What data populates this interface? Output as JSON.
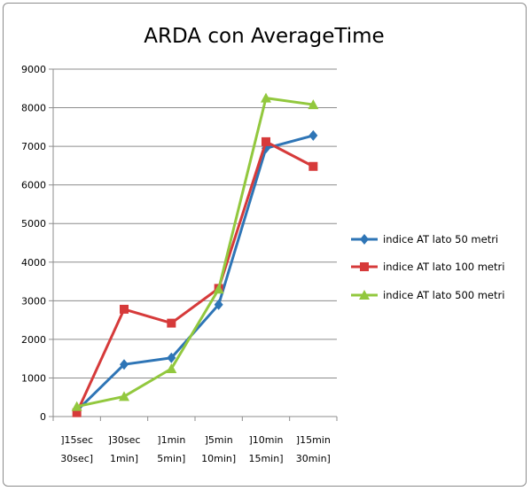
{
  "chart_data": {
    "type": "line",
    "title": "ARDA con AverageTime",
    "xlabel": "",
    "ylabel": "",
    "ylim": [
      0,
      9000
    ],
    "yticks": [
      0,
      1000,
      2000,
      3000,
      4000,
      5000,
      6000,
      7000,
      8000,
      9000
    ],
    "grid": "horizontal",
    "legend_position": "right",
    "categories": [
      [
        "]15sec",
        "30sec]"
      ],
      [
        "]30sec",
        "1min]"
      ],
      [
        "]1min",
        "5min]"
      ],
      [
        "]5min",
        "10min]"
      ],
      [
        "]10min",
        "15min]"
      ],
      [
        "]15min",
        "30min]"
      ]
    ],
    "series": [
      {
        "name": "indice AT lato 50 metri",
        "color": "#2e75b6",
        "marker": "diamond",
        "values": [
          150,
          1350,
          1520,
          2900,
          6950,
          7280
        ]
      },
      {
        "name": "indice AT lato 100 metri",
        "color": "#d63a3a",
        "marker": "square",
        "values": [
          100,
          2780,
          2420,
          3320,
          7120,
          6480
        ]
      },
      {
        "name": "indice AT lato 500 metri",
        "color": "#92c83e",
        "marker": "triangle",
        "values": [
          260,
          520,
          1240,
          3300,
          8250,
          8080
        ]
      }
    ]
  }
}
